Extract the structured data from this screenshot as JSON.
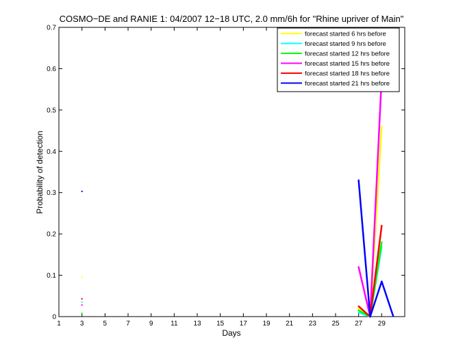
{
  "chart_data": {
    "type": "line",
    "title": "COSMO−DE and RANIE 1: 04/2007 12−18 UTC, 2.0 mm/6h for \"Rhine upriver of Main\"",
    "xlabel": "Days",
    "ylabel": "Probability of detection",
    "xlim": [
      1,
      31
    ],
    "ylim": [
      0,
      0.7
    ],
    "x_ticks": [
      1,
      3,
      5,
      7,
      9,
      11,
      13,
      15,
      17,
      19,
      21,
      23,
      25,
      27,
      29
    ],
    "y_ticks": [
      0,
      0.1,
      0.2,
      0.3,
      0.4,
      0.5,
      0.6,
      0.7
    ],
    "y_tick_labels": [
      "0",
      "0.1",
      "0.2",
      "0.3",
      "0.4",
      "0.5",
      "0.6",
      "0.7"
    ],
    "grid": false,
    "legend_position": "top-right",
    "series": [
      {
        "name": "forecast started 6 hrs before",
        "color": "#ffff00",
        "x": [
          3,
          27,
          28,
          29
        ],
        "y": [
          0.095,
          0.02,
          0.0,
          0.46
        ]
      },
      {
        "name": "forecast started 9 hrs before",
        "color": "#00ffff",
        "x": [
          3,
          27,
          28,
          29
        ],
        "y": [
          0.035,
          0.01,
          0.0,
          0.17
        ]
      },
      {
        "name": "forecast started 12 hrs before",
        "color": "#00ff00",
        "x": [
          3,
          27,
          28,
          29
        ],
        "y": [
          0.008,
          0.015,
          0.0,
          0.18
        ]
      },
      {
        "name": "forecast started 15 hrs before",
        "color": "#ff00ff",
        "x": [
          3,
          27,
          28,
          29
        ],
        "y": [
          0.028,
          0.12,
          0.0,
          0.58
        ]
      },
      {
        "name": "forecast started 18 hrs before",
        "color": "#ff0000",
        "x": [
          3,
          27,
          28,
          29
        ],
        "y": [
          0.043,
          0.025,
          0.0,
          0.22
        ]
      },
      {
        "name": "forecast started 21 hrs before",
        "color": "#0000ff",
        "x": [
          3,
          27,
          28,
          29,
          30
        ],
        "y": [
          0.303,
          0.33,
          0.0,
          0.085,
          0.001
        ]
      }
    ]
  }
}
